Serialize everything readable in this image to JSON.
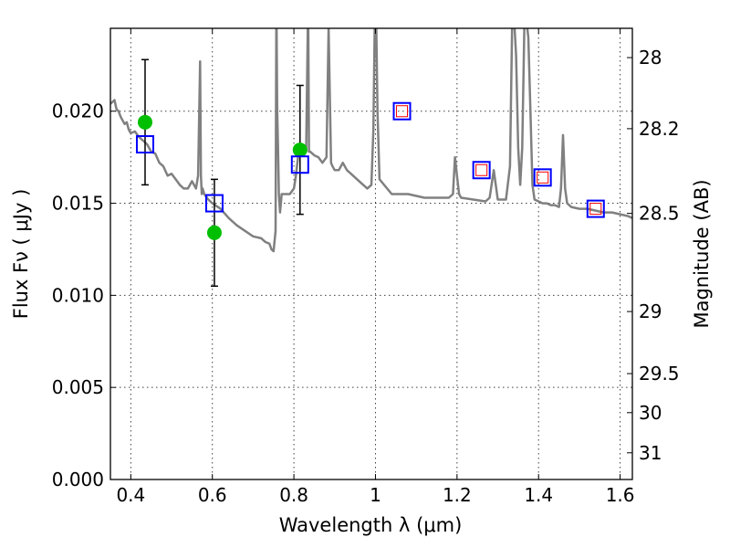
{
  "chart_data": {
    "type": "scatter",
    "title": "",
    "xlabel": "Wavelength  λ (μm)",
    "ylabel": "Flux  Fν  ( μJy )",
    "ylabel_right": "Magnitude (AB)",
    "xlim": [
      0.35,
      1.63
    ],
    "ylim": [
      0.0,
      0.0245
    ],
    "grid": true,
    "x_ticks": [
      0.4,
      0.6,
      0.8,
      1.0,
      1.2,
      1.4,
      1.6
    ],
    "x_tick_labels": [
      "0.4",
      "0.6",
      "0.8",
      "1",
      "1.2",
      "1.4",
      "1.6"
    ],
    "y_ticks": [
      0.0,
      0.005,
      0.01,
      0.015,
      0.02
    ],
    "y_tick_labels": [
      "0.000",
      "0.005",
      "0.010",
      "0.015",
      "0.020"
    ],
    "right_ticks": [
      {
        "label": "28",
        "flux": 0.02291
      },
      {
        "label": "28.2",
        "flux": 0.01905
      },
      {
        "label": "28.5",
        "flux": 0.01445
      },
      {
        "label": "29",
        "flux": 0.00912
      },
      {
        "label": "29.5",
        "flux": 0.00575
      },
      {
        "label": "30",
        "flux": 0.00363
      },
      {
        "label": "31",
        "flux": 0.00145
      }
    ],
    "series": [
      {
        "name": "model spectrum",
        "kind": "line",
        "color": "#808080",
        "x": [
          0.35,
          0.355,
          0.36,
          0.365,
          0.37,
          0.375,
          0.38,
          0.385,
          0.39,
          0.395,
          0.4,
          0.41,
          0.42,
          0.43,
          0.44,
          0.45,
          0.46,
          0.47,
          0.48,
          0.49,
          0.5,
          0.51,
          0.52,
          0.53,
          0.54,
          0.55,
          0.56,
          0.565,
          0.57,
          0.572,
          0.574,
          0.576,
          0.58,
          0.59,
          0.6,
          0.62,
          0.64,
          0.66,
          0.68,
          0.7,
          0.72,
          0.73,
          0.74,
          0.745,
          0.75,
          0.755,
          0.757,
          0.759,
          0.761,
          0.763,
          0.766,
          0.77,
          0.78,
          0.79,
          0.8,
          0.805,
          0.81,
          0.82,
          0.83,
          0.835,
          0.837,
          0.84,
          0.85,
          0.86,
          0.87,
          0.88,
          0.885,
          0.888,
          0.891,
          0.895,
          0.9,
          0.91,
          0.92,
          0.93,
          0.94,
          0.95,
          0.96,
          0.97,
          0.98,
          0.99,
          0.995,
          0.998,
          1.0,
          1.002,
          1.005,
          1.01,
          1.04,
          1.06,
          1.08,
          1.1,
          1.12,
          1.15,
          1.18,
          1.19,
          1.195,
          1.2,
          1.205,
          1.21,
          1.24,
          1.27,
          1.28,
          1.29,
          1.3,
          1.31,
          1.32,
          1.33,
          1.335,
          1.34,
          1.345,
          1.35,
          1.355,
          1.36,
          1.365,
          1.37,
          1.375,
          1.38,
          1.385,
          1.39,
          1.4,
          1.41,
          1.42,
          1.43,
          1.44,
          1.45,
          1.455,
          1.46,
          1.465,
          1.47,
          1.48,
          1.5,
          1.52,
          1.54,
          1.56,
          1.58,
          1.6,
          1.62,
          1.63
        ],
        "y": [
          0.0204,
          0.0205,
          0.0206,
          0.0201,
          0.02,
          0.0197,
          0.0195,
          0.0193,
          0.0194,
          0.019,
          0.0188,
          0.0189,
          0.0186,
          0.0184,
          0.0182,
          0.0178,
          0.0177,
          0.0172,
          0.017,
          0.0165,
          0.0166,
          0.0163,
          0.016,
          0.0158,
          0.0158,
          0.0162,
          0.0158,
          0.0165,
          0.0227,
          0.0165,
          0.0155,
          0.0158,
          0.0155,
          0.0152,
          0.015,
          0.0147,
          0.0142,
          0.0138,
          0.0135,
          0.0132,
          0.0131,
          0.0129,
          0.0128,
          0.0125,
          0.0124,
          0.0135,
          0.026,
          0.02,
          0.018,
          0.0155,
          0.0145,
          0.0155,
          0.0155,
          0.0155,
          0.0158,
          0.0165,
          0.0175,
          0.018,
          0.0178,
          0.026,
          0.0178,
          0.0178,
          0.0176,
          0.0175,
          0.0172,
          0.0175,
          0.0245,
          0.021,
          0.0172,
          0.017,
          0.0168,
          0.0168,
          0.0172,
          0.0168,
          0.0166,
          0.0164,
          0.0162,
          0.016,
          0.0158,
          0.016,
          0.019,
          0.0245,
          0.025,
          0.0245,
          0.02,
          0.0163,
          0.0155,
          0.0155,
          0.0155,
          0.0154,
          0.0153,
          0.0153,
          0.0153,
          0.0155,
          0.0175,
          0.0165,
          0.0155,
          0.0153,
          0.0152,
          0.0151,
          0.0153,
          0.0168,
          0.0152,
          0.0152,
          0.0152,
          0.017,
          0.0245,
          0.025,
          0.023,
          0.018,
          0.016,
          0.018,
          0.0245,
          0.025,
          0.024,
          0.02,
          0.016,
          0.0152,
          0.0151,
          0.015,
          0.015,
          0.0149,
          0.0149,
          0.0148,
          0.0158,
          0.0187,
          0.0158,
          0.015,
          0.0148,
          0.0147,
          0.0147,
          0.0146,
          0.0145,
          0.0145,
          0.0144,
          0.0143,
          0.0142
        ]
      },
      {
        "name": "observed photometry",
        "kind": "points",
        "color": "#00bf00",
        "x": [
          0.435,
          0.605,
          0.815
        ],
        "y": [
          0.0194,
          0.0134,
          0.0179
        ],
        "yerr": [
          0.0034,
          0.0029,
          0.0035
        ]
      },
      {
        "name": "model photometry",
        "kind": "open-squares",
        "color": "#0000ff",
        "x": [
          0.435,
          0.605,
          0.815,
          1.065,
          1.26,
          1.41,
          1.54
        ],
        "y": [
          0.0182,
          0.015,
          0.0171,
          0.02,
          0.0168,
          0.0164,
          0.0147
        ]
      },
      {
        "name": "model photometry (small)",
        "kind": "small-open-squares",
        "color": "#ff0000",
        "x": [
          1.065,
          1.26,
          1.41,
          1.54
        ],
        "y": [
          0.02,
          0.0168,
          0.0164,
          0.0147
        ]
      }
    ]
  }
}
